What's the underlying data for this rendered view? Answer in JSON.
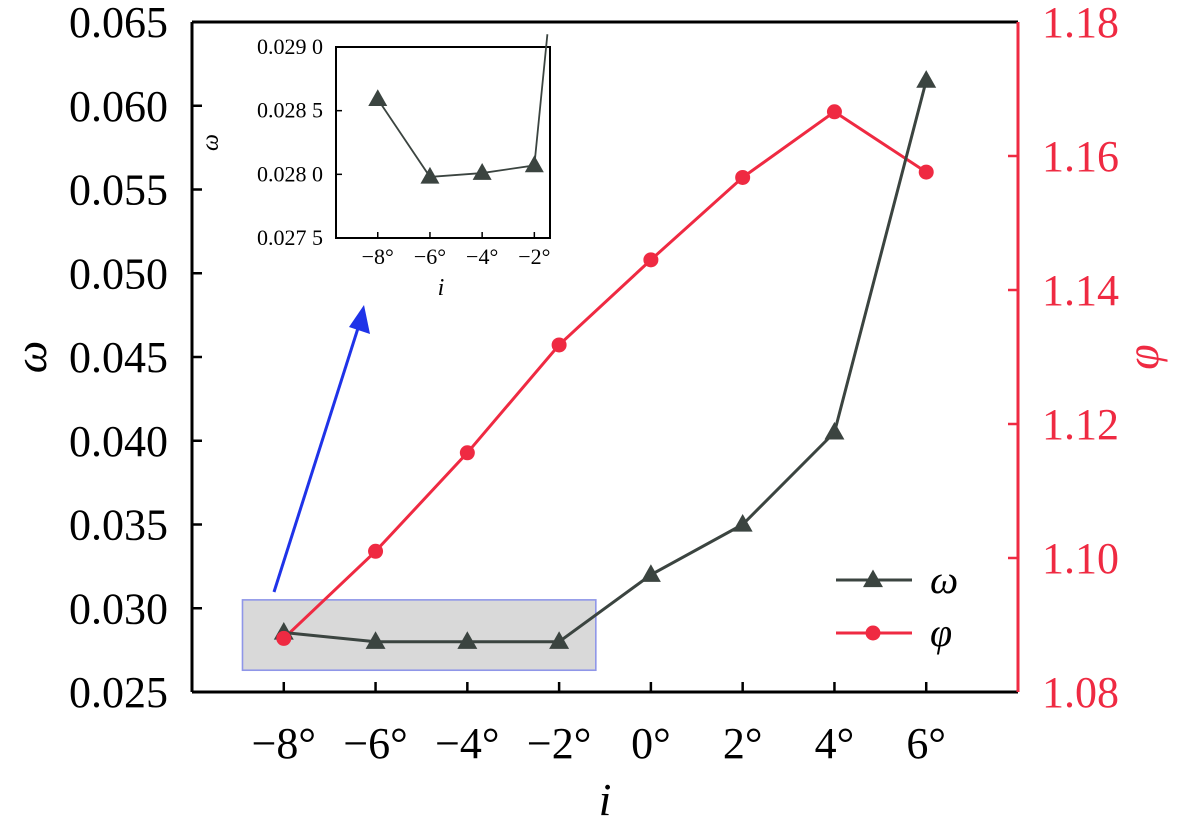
{
  "chart_data": [
    {
      "type": "line",
      "title": "",
      "xlabel": "i",
      "ylabel": "ω",
      "y2label": "φ",
      "categories": [
        "−8°",
        "−6°",
        "−4°",
        "−2°",
        "0°",
        "2°",
        "4°",
        "6°"
      ],
      "x": [
        -8,
        -6,
        -4,
        -2,
        0,
        2,
        4,
        6
      ],
      "xlim": [
        -10,
        8
      ],
      "ylim": [
        0.025,
        0.065
      ],
      "y2lim": [
        1.08,
        1.18
      ],
      "yticks": [
        "0.025",
        "0.030",
        "0.035",
        "0.040",
        "0.045",
        "0.050",
        "0.055",
        "0.060",
        "0.065"
      ],
      "yticks_values": [
        0.025,
        0.03,
        0.035,
        0.04,
        0.045,
        0.05,
        0.055,
        0.06,
        0.065
      ],
      "y2ticks": [
        "1.08",
        "1.10",
        "1.12",
        "1.14",
        "1.16",
        "1.18"
      ],
      "y2ticks_values": [
        1.08,
        1.1,
        1.12,
        1.14,
        1.16,
        1.18
      ],
      "series": [
        {
          "name": "ω",
          "axis": "left",
          "marker": "triangle",
          "color": "#3b4440",
          "values": [
            0.02855,
            0.028,
            0.028,
            0.028,
            0.032,
            0.035,
            0.0405,
            0.0615
          ]
        },
        {
          "name": "φ",
          "axis": "right",
          "marker": "circle",
          "color": "#ef2a42",
          "values": [
            1.088,
            1.101,
            1.1157,
            1.1318,
            1.1445,
            1.1568,
            1.1666,
            1.1576
          ]
        }
      ],
      "legend_position": "bottom-right",
      "highlight_box": {
        "x_range": [
          -8.9,
          -1.2
        ],
        "y_range": [
          0.0263,
          0.0305
        ],
        "fill": "#d9d9d9",
        "stroke": "#8f96e8"
      },
      "arrow_color": "#1f33e8"
    },
    {
      "type": "line",
      "title": "",
      "xlabel": "i",
      "ylabel": "ω",
      "categories": [
        "−8°",
        "−6°",
        "−4°",
        "−2°"
      ],
      "x": [
        -8,
        -6,
        -4,
        -2
      ],
      "xlim": [
        -9.6,
        -1.4
      ],
      "ylim": [
        0.0275,
        0.029
      ],
      "yticks": [
        "0.027 5",
        "0.028 0",
        "0.028 5",
        "0.029 0"
      ],
      "yticks_values": [
        0.0275,
        0.028,
        0.0285,
        0.029
      ],
      "series": [
        {
          "name": "ω",
          "marker": "triangle",
          "color": "#3b4440",
          "values": [
            0.02859,
            0.02798,
            0.02801,
            0.02807
          ]
        }
      ],
      "exit_point": {
        "x": -1.5,
        "y": 0.0291
      }
    }
  ]
}
